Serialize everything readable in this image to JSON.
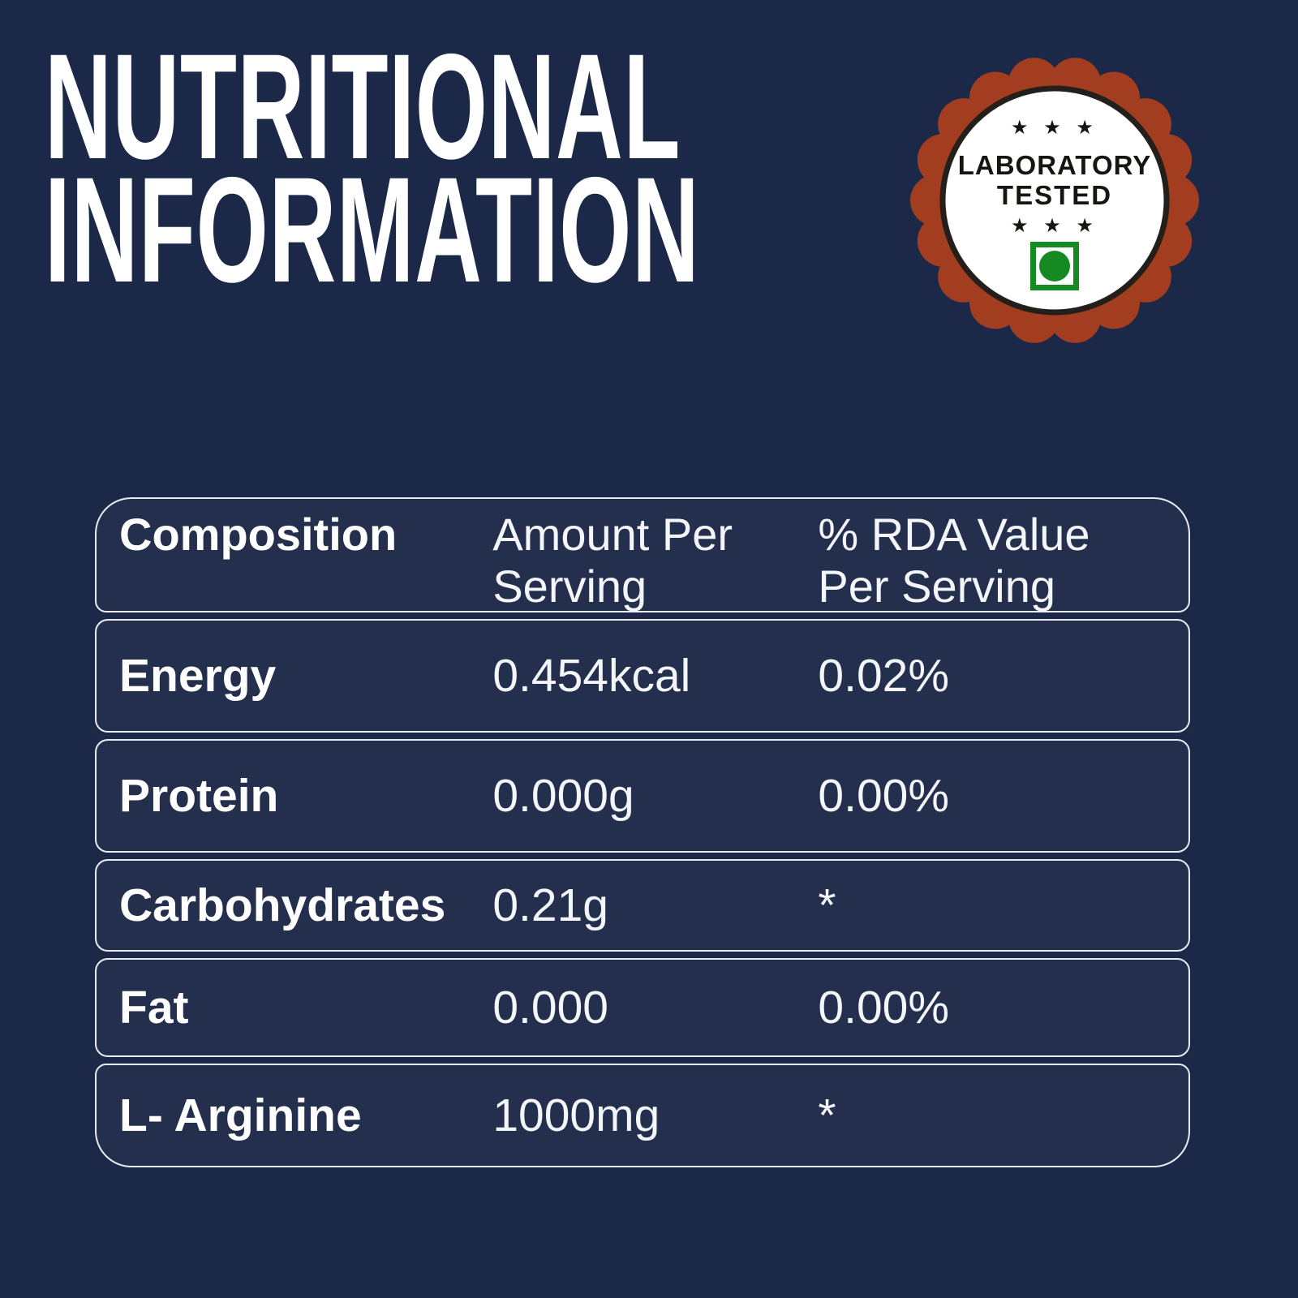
{
  "title": {
    "text": "NUTRITIONAL\nINFORMATION"
  },
  "badge": {
    "stars_top": "★ ★ ★",
    "line1": "LABORATORY",
    "line2": "TESTED",
    "stars_bottom": "★ ★ ★",
    "veg_mark": "vegetarian-symbol",
    "colors": {
      "scallop": "#a23d20",
      "ring": "#241f1a",
      "inner_circle": "#ffffff",
      "text": "#17150f",
      "veg_green": "#168a22"
    }
  },
  "table": {
    "header": {
      "composition": "Composition",
      "amount": "Amount Per\nServing",
      "rda": "% RDA Value\nPer Serving"
    },
    "rows": [
      {
        "name": "Energy",
        "amount": "0.454kcal",
        "rda": "0.02%"
      },
      {
        "name": "Protein",
        "amount": "0.000g",
        "rda": "0.00%"
      },
      {
        "name": "Carbohydrates",
        "amount": "0.21g",
        "rda": "*"
      },
      {
        "name": "Fat",
        "amount": "0.000",
        "rda": "0.00%"
      },
      {
        "name": "L- Arginine",
        "amount": "1000mg",
        "rda": "*"
      }
    ]
  },
  "colors": {
    "background": "#1b2847",
    "table_border": "#e7ecf4",
    "text_white": "#ffffff"
  }
}
